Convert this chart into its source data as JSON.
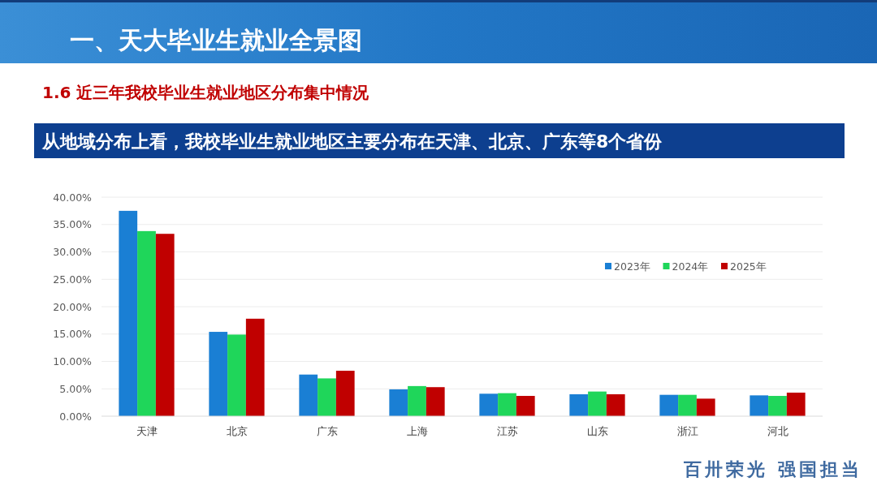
{
  "chart_data": {
    "type": "bar",
    "title": "一、天大毕业生就业全景图",
    "subtitle": "1.6 近三年我校毕业生就业地区分布集中情况",
    "annotations": [
      "从地域分布上看，我校毕业生就业地区主要分布在天津、北京、广东等8个省份",
      "百卅荣光  强国担当"
    ],
    "categories": [
      "天津",
      "北京",
      "广东",
      "上海",
      "江苏",
      "山东",
      "浙江",
      "河北"
    ],
    "series": [
      {
        "name": "2023年",
        "color": "#1a7fd4",
        "values": [
          37.5,
          15.4,
          7.6,
          4.9,
          4.1,
          4.0,
          3.9,
          3.8
        ]
      },
      {
        "name": "2024年",
        "color": "#1fd65a",
        "values": [
          33.8,
          14.9,
          6.9,
          5.5,
          4.2,
          4.5,
          3.9,
          3.7
        ]
      },
      {
        "name": "2025年",
        "color": "#c00000",
        "values": [
          33.3,
          17.8,
          8.3,
          5.3,
          3.7,
          4.0,
          3.2,
          4.3
        ]
      }
    ],
    "ylim": [
      0,
      40
    ],
    "yticks": [
      {
        "value": 0,
        "label": "0.00%"
      },
      {
        "value": 5,
        "label": "5.00%"
      },
      {
        "value": 10,
        "label": "10.00%"
      },
      {
        "value": 15,
        "label": "15.00%"
      },
      {
        "value": 20,
        "label": "20.00%"
      },
      {
        "value": 25,
        "label": "25.00%"
      },
      {
        "value": 30,
        "label": "30.00%"
      },
      {
        "value": 35,
        "label": "35.00%"
      },
      {
        "value": 40,
        "label": "40.00%"
      }
    ],
    "grid": "y",
    "legend": "top right"
  }
}
